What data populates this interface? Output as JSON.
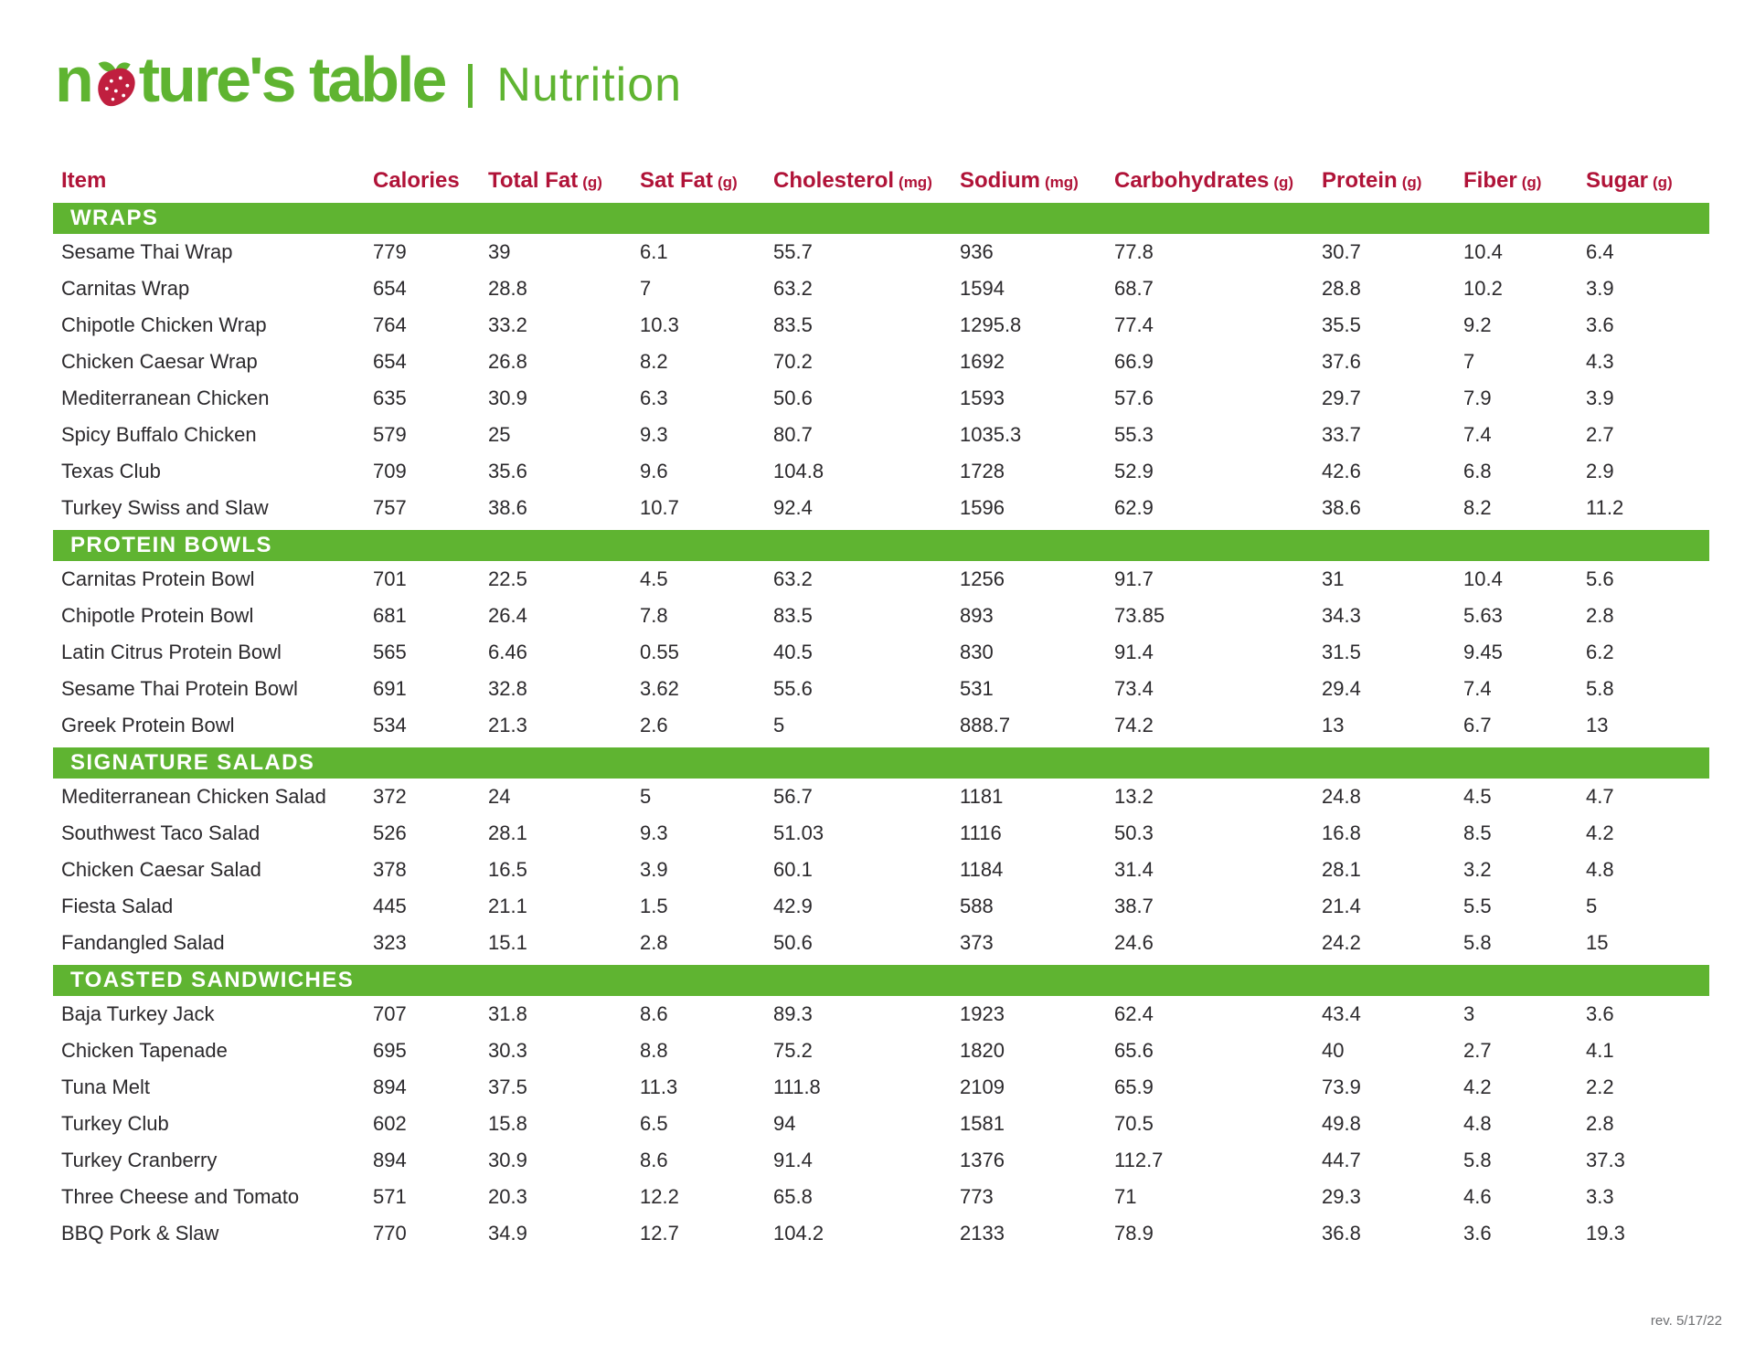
{
  "brand": {
    "logo_part1": "n",
    "logo_part2": "ture's table",
    "divider": "|",
    "page_title": "Nutrition"
  },
  "colors": {
    "green": "#5fb431",
    "crimson": "#b01338",
    "text": "#2b292c",
    "strawberry_red": "#c01f3f",
    "footer_gray": "#6d6e71"
  },
  "table": {
    "columns": [
      {
        "label": "Item",
        "unit": ""
      },
      {
        "label": "Calories",
        "unit": ""
      },
      {
        "label": "Total Fat",
        "unit": "(g)"
      },
      {
        "label": "Sat Fat",
        "unit": "(g)"
      },
      {
        "label": "Cholesterol",
        "unit": "(mg)"
      },
      {
        "label": "Sodium",
        "unit": "(mg)"
      },
      {
        "label": "Carbohydrates",
        "unit": "(g)"
      },
      {
        "label": "Protein",
        "unit": "(g)"
      },
      {
        "label": "Fiber",
        "unit": "(g)"
      },
      {
        "label": "Sugar",
        "unit": "(g)"
      }
    ],
    "sections": [
      {
        "name": "WRAPS",
        "rows": [
          {
            "item": "Sesame Thai Wrap",
            "values": [
              "779",
              "39",
              "6.1",
              "55.7",
              "936",
              "77.8",
              "30.7",
              "10.4",
              "6.4"
            ]
          },
          {
            "item": "Carnitas Wrap",
            "values": [
              "654",
              "28.8",
              "7",
              "63.2",
              "1594",
              "68.7",
              "28.8",
              "10.2",
              "3.9"
            ]
          },
          {
            "item": "Chipotle Chicken Wrap",
            "values": [
              "764",
              "33.2",
              "10.3",
              "83.5",
              "1295.8",
              "77.4",
              "35.5",
              "9.2",
              "3.6"
            ]
          },
          {
            "item": "Chicken Caesar Wrap",
            "values": [
              "654",
              "26.8",
              "8.2",
              "70.2",
              "1692",
              "66.9",
              "37.6",
              "7",
              "4.3"
            ]
          },
          {
            "item": "Mediterranean Chicken",
            "values": [
              "635",
              "30.9",
              "6.3",
              "50.6",
              "1593",
              "57.6",
              "29.7",
              "7.9",
              "3.9"
            ]
          },
          {
            "item": "Spicy Buffalo Chicken",
            "values": [
              "579",
              "25",
              "9.3",
              "80.7",
              "1035.3",
              "55.3",
              "33.7",
              "7.4",
              "2.7"
            ]
          },
          {
            "item": "Texas Club",
            "values": [
              "709",
              "35.6",
              "9.6",
              "104.8",
              "1728",
              "52.9",
              "42.6",
              "6.8",
              "2.9"
            ]
          },
          {
            "item": "Turkey Swiss and Slaw",
            "values": [
              "757",
              "38.6",
              "10.7",
              "92.4",
              "1596",
              "62.9",
              "38.6",
              "8.2",
              "11.2"
            ]
          }
        ]
      },
      {
        "name": "PROTEIN BOWLS",
        "rows": [
          {
            "item": "Carnitas Protein Bowl",
            "values": [
              "701",
              "22.5",
              "4.5",
              "63.2",
              "1256",
              "91.7",
              "31",
              "10.4",
              "5.6"
            ]
          },
          {
            "item": "Chipotle Protein Bowl",
            "values": [
              "681",
              "26.4",
              "7.8",
              "83.5",
              "893",
              "73.85",
              "34.3",
              "5.63",
              "2.8"
            ]
          },
          {
            "item": "Latin Citrus Protein Bowl",
            "values": [
              "565",
              "6.46",
              "0.55",
              "40.5",
              "830",
              "91.4",
              "31.5",
              "9.45",
              "6.2"
            ]
          },
          {
            "item": "Sesame Thai Protein Bowl",
            "values": [
              "691",
              "32.8",
              "3.62",
              "55.6",
              "531",
              "73.4",
              "29.4",
              "7.4",
              "5.8"
            ]
          },
          {
            "item": "Greek Protein Bowl",
            "values": [
              "534",
              "21.3",
              "2.6",
              "5",
              "888.7",
              "74.2",
              "13",
              "6.7",
              "13"
            ]
          }
        ]
      },
      {
        "name": "SIGNATURE SALADS",
        "rows": [
          {
            "item": "Mediterranean Chicken Salad",
            "values": [
              "372",
              "24",
              "5",
              "56.7",
              "1181",
              "13.2",
              "24.8",
              "4.5",
              "4.7"
            ]
          },
          {
            "item": "Southwest Taco Salad",
            "values": [
              "526",
              "28.1",
              "9.3",
              "51.03",
              "1116",
              "50.3",
              "16.8",
              "8.5",
              "4.2"
            ]
          },
          {
            "item": "Chicken Caesar Salad",
            "values": [
              "378",
              "16.5",
              "3.9",
              "60.1",
              "1184",
              "31.4",
              "28.1",
              "3.2",
              "4.8"
            ]
          },
          {
            "item": "Fiesta Salad",
            "values": [
              "445",
              "21.1",
              "1.5",
              "42.9",
              "588",
              "38.7",
              "21.4",
              "5.5",
              "5"
            ]
          },
          {
            "item": "Fandangled Salad",
            "values": [
              "323",
              "15.1",
              "2.8",
              "50.6",
              "373",
              "24.6",
              "24.2",
              "5.8",
              "15"
            ]
          }
        ]
      },
      {
        "name": "TOASTED SANDWICHES",
        "rows": [
          {
            "item": "Baja Turkey Jack",
            "values": [
              "707",
              "31.8",
              "8.6",
              "89.3",
              "1923",
              "62.4",
              "43.4",
              "3",
              "3.6"
            ]
          },
          {
            "item": "Chicken Tapenade",
            "values": [
              "695",
              "30.3",
              "8.8",
              "75.2",
              "1820",
              "65.6",
              "40",
              "2.7",
              "4.1"
            ]
          },
          {
            "item": "Tuna Melt",
            "values": [
              "894",
              "37.5",
              "11.3",
              "111.8",
              "2109",
              "65.9",
              "73.9",
              "4.2",
              "2.2"
            ]
          },
          {
            "item": "Turkey Club",
            "values": [
              "602",
              "15.8",
              "6.5",
              "94",
              "1581",
              "70.5",
              "49.8",
              "4.8",
              "2.8"
            ]
          },
          {
            "item": "Turkey Cranberry",
            "values": [
              "894",
              "30.9",
              "8.6",
              "91.4",
              "1376",
              "112.7",
              "44.7",
              "5.8",
              "37.3"
            ]
          },
          {
            "item": "Three Cheese and Tomato",
            "values": [
              "571",
              "20.3",
              "12.2",
              "65.8",
              "773",
              "71",
              "29.3",
              "4.6",
              "3.3"
            ]
          },
          {
            "item": "BBQ Pork & Slaw",
            "values": [
              "770",
              "34.9",
              "12.7",
              "104.2",
              "2133",
              "78.9",
              "36.8",
              "3.6",
              "19.3"
            ]
          }
        ]
      }
    ]
  },
  "footer": {
    "revision": "rev. 5/17/22"
  }
}
